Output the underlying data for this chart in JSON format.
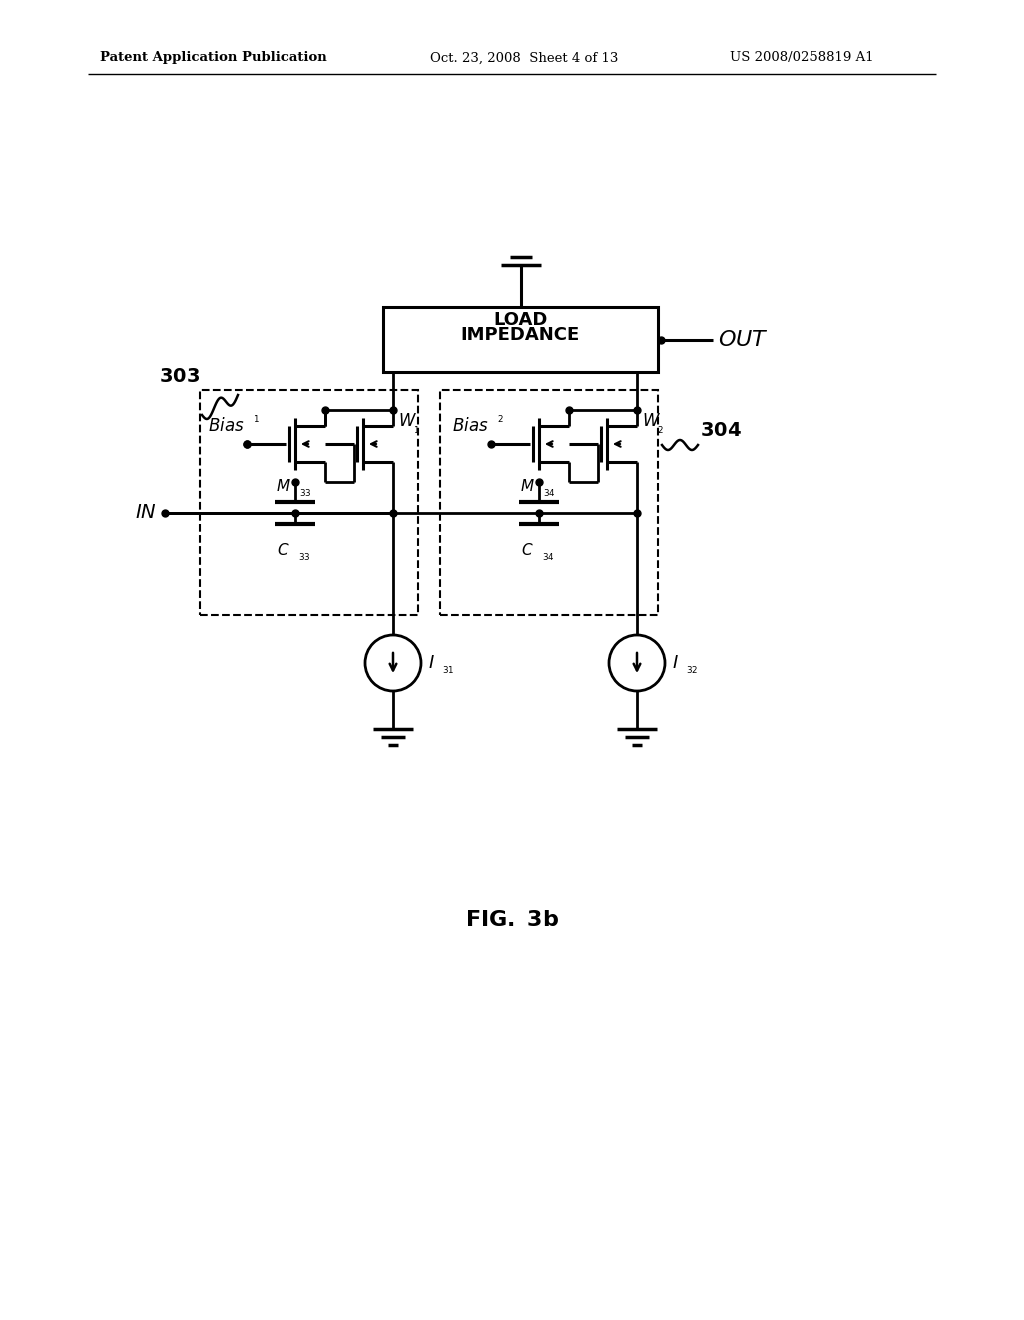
{
  "bg_color": "#ffffff",
  "line_color": "#000000",
  "header_left": "Patent Application Publication",
  "header_mid": "Oct. 23, 2008  Sheet 4 of 13",
  "header_right": "US 2008/0258819 A1",
  "fig_label": "FIG. 3b"
}
